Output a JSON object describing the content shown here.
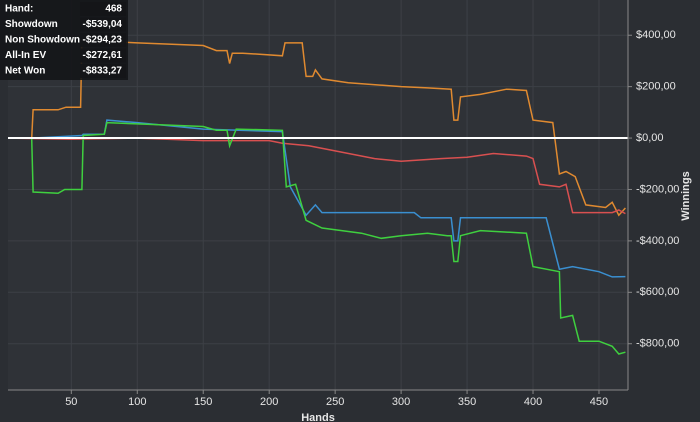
{
  "chart_data": {
    "type": "line",
    "x_label": "Hands",
    "y_label": "Winnings",
    "xlim": [
      2,
      472
    ],
    "ylim": [
      -980,
      537
    ],
    "xticks": [
      50,
      100,
      150,
      200,
      250,
      300,
      350,
      400,
      450
    ],
    "yticks": [
      {
        "value": 400,
        "label": "$400,00"
      },
      {
        "value": 200,
        "label": "$200,00"
      },
      {
        "value": 0,
        "label": "$0,00"
      },
      {
        "value": -200,
        "label": "-$200,00"
      },
      {
        "value": -400,
        "label": "-$400,00"
      },
      {
        "value": -600,
        "label": "-$600,00"
      },
      {
        "value": -800,
        "label": "-$800,00"
      }
    ],
    "grid": true,
    "info_box": {
      "rows": [
        {
          "label": "Hand:",
          "value": "468"
        },
        {
          "label": "Showdown",
          "value": "-$539,04"
        },
        {
          "label": "Non Showdown",
          "value": "-$294,23"
        },
        {
          "label": "All-In EV",
          "value": "-$272,61"
        },
        {
          "label": "Net Won",
          "value": "-$833,27"
        }
      ]
    },
    "series": [
      {
        "name": "Net Won",
        "color": "#3fd03f",
        "x": [
          3,
          20,
          21,
          40,
          45,
          58,
          59,
          75,
          77,
          100,
          150,
          160,
          168,
          170,
          175,
          210,
          213,
          220,
          228,
          240,
          270,
          285,
          300,
          320,
          335,
          338,
          340,
          343,
          345,
          360,
          395,
          400,
          420,
          421,
          430,
          435,
          450,
          460,
          465,
          470
        ],
        "values": [
          0,
          0,
          -210,
          -215,
          -200,
          -200,
          10,
          15,
          60,
          55,
          45,
          30,
          30,
          -30,
          35,
          30,
          -190,
          -180,
          -320,
          -350,
          -370,
          -390,
          -380,
          -370,
          -380,
          -380,
          -480,
          -480,
          -380,
          -360,
          -370,
          -500,
          -520,
          -700,
          -690,
          -790,
          -790,
          -810,
          -840,
          -833
        ]
      },
      {
        "name": "Showdown",
        "color": "#3a8fd0",
        "x": [
          3,
          20,
          58,
          59,
          75,
          77,
          100,
          150,
          210,
          216,
          228,
          235,
          240,
          310,
          315,
          335,
          338,
          340,
          343,
          345,
          410,
          420,
          430,
          450,
          460,
          470
        ],
        "values": [
          0,
          0,
          10,
          15,
          15,
          70,
          60,
          35,
          25,
          -190,
          -300,
          -260,
          -290,
          -290,
          -310,
          -310,
          -310,
          -400,
          -400,
          -310,
          -310,
          -510,
          -500,
          -520,
          -540,
          -539
        ]
      },
      {
        "name": "Non Showdown",
        "color": "#d95050",
        "x": [
          3,
          50,
          100,
          150,
          200,
          210,
          230,
          250,
          280,
          300,
          330,
          350,
          370,
          395,
          400,
          405,
          420,
          425,
          430,
          460,
          465,
          470
        ],
        "values": [
          0,
          -5,
          0,
          -10,
          -10,
          -20,
          -30,
          -50,
          -80,
          -90,
          -80,
          -75,
          -60,
          -70,
          -80,
          -180,
          -190,
          -180,
          -290,
          -290,
          -280,
          -294
        ]
      },
      {
        "name": "All-In EV",
        "color": "#e08a30",
        "x": [
          3,
          20,
          21,
          40,
          46,
          57,
          58,
          100,
          150,
          160,
          168,
          170,
          172,
          180,
          210,
          212,
          225,
          228,
          233,
          235,
          240,
          260,
          300,
          320,
          338,
          340,
          343,
          345,
          360,
          380,
          395,
          400,
          415,
          420,
          425,
          432,
          440,
          455,
          460,
          465,
          470
        ],
        "values": [
          0,
          0,
          110,
          110,
          120,
          120,
          380,
          370,
          360,
          340,
          340,
          290,
          330,
          330,
          320,
          370,
          370,
          240,
          240,
          265,
          230,
          215,
          200,
          195,
          190,
          70,
          70,
          160,
          170,
          190,
          185,
          70,
          60,
          -140,
          -130,
          -150,
          -260,
          -270,
          -250,
          -300,
          -272
        ]
      }
    ]
  }
}
